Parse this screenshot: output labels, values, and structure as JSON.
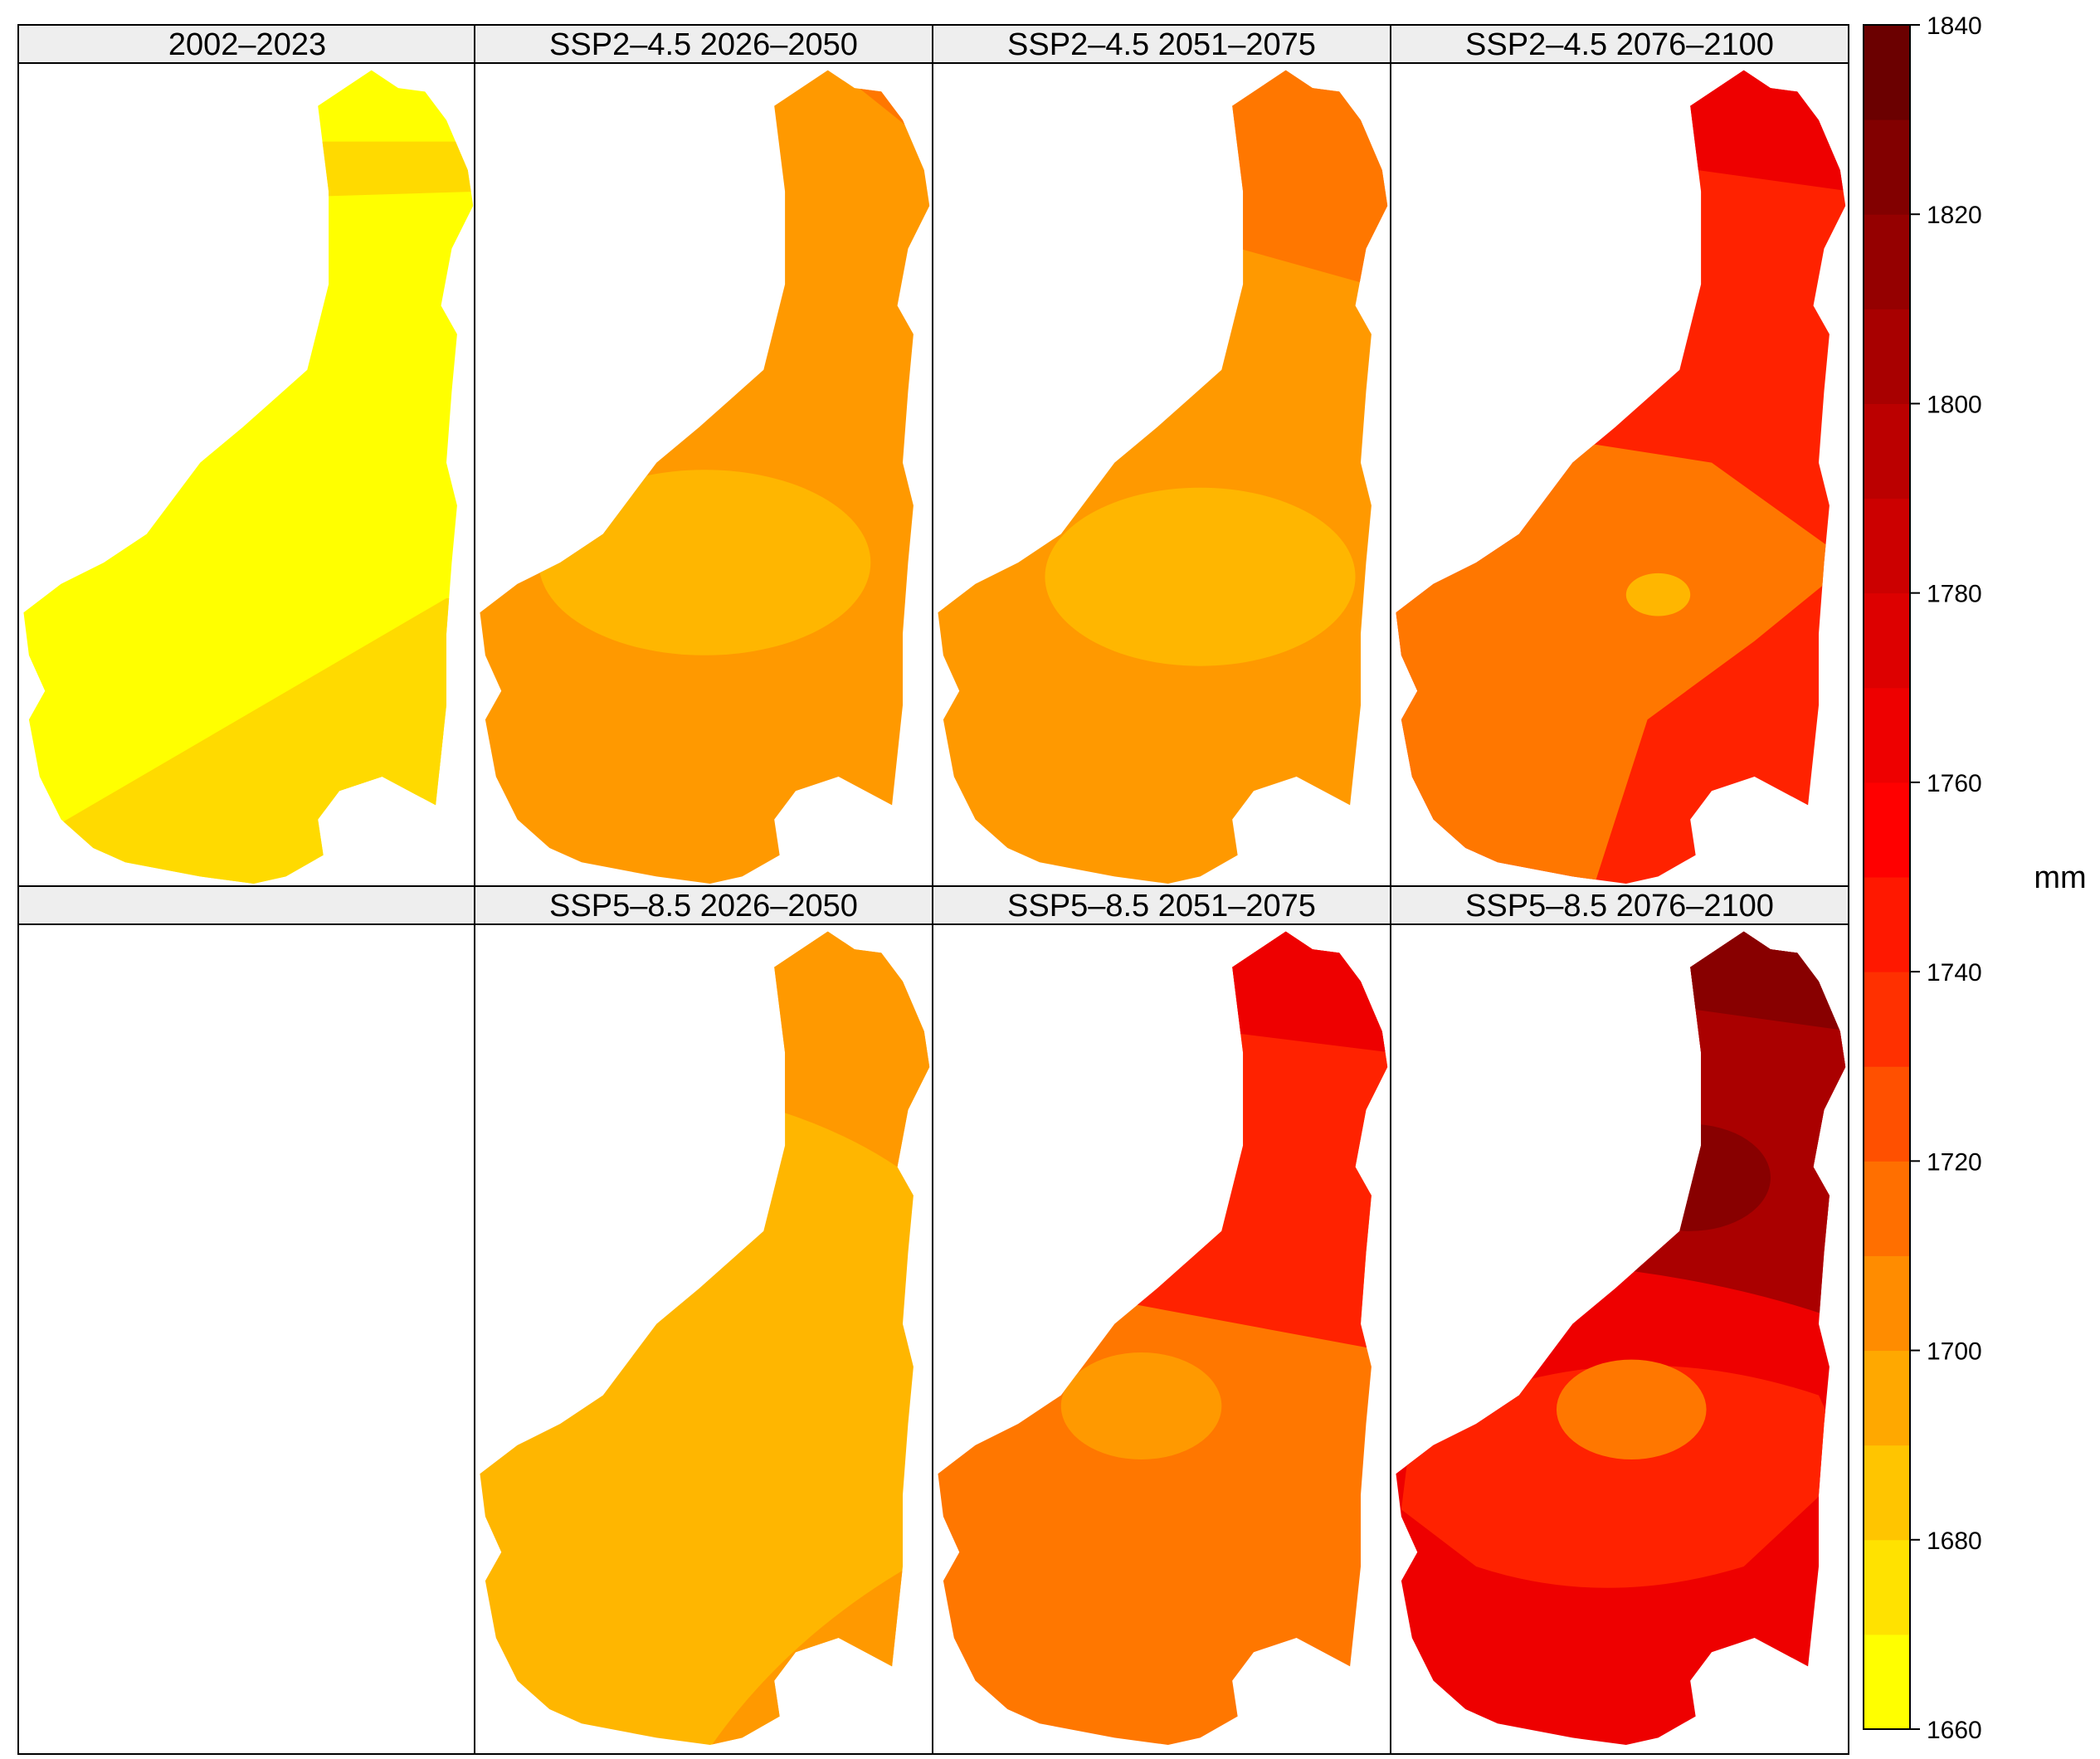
{
  "figure": {
    "unit": "mm"
  },
  "panels": [
    {
      "title": "2002–2023",
      "empty": false
    },
    {
      "title": "SSP2–4.5 2026–2050",
      "empty": false
    },
    {
      "title": "SSP2–4.5 2051–2075",
      "empty": false
    },
    {
      "title": "SSP2–4.5 2076–2100",
      "empty": false
    },
    {
      "title": "",
      "empty": true
    },
    {
      "title": "SSP5–8.5 2026–2050",
      "empty": false
    },
    {
      "title": "SSP5–8.5 2051–2075",
      "empty": false
    },
    {
      "title": "SSP5–8.5 2076–2100",
      "empty": false
    }
  ],
  "legend": {
    "ticks": [
      "1660",
      "1680",
      "1700",
      "1720",
      "1740",
      "1760",
      "1780",
      "1800",
      "1820",
      "1840"
    ],
    "breaks": [
      1660,
      1670,
      1680,
      1690,
      1700,
      1710,
      1720,
      1730,
      1740,
      1750,
      1760,
      1770,
      1780,
      1790,
      1800,
      1810,
      1820,
      1830,
      1840
    ],
    "colors": [
      "#FFFF00",
      "#FFE200",
      "#FFC500",
      "#FFA800",
      "#FF8C00",
      "#FF6F00",
      "#FF5000",
      "#FF3000",
      "#FF1800",
      "#FF0000",
      "#EE0000",
      "#DD0000",
      "#CC0000",
      "#BB0000",
      "#A80000",
      "#950000",
      "#820000",
      "#6B0000"
    ]
  },
  "chart_data": {
    "type": "heatmap",
    "description_units": "mm",
    "color_scale": {
      "min": 1660,
      "max": 1840,
      "step": 10
    },
    "panel_zones": [
      {
        "panel": "2002–2023",
        "zones_mm_ranges": [
          [
            1660,
            1670
          ],
          [
            1670,
            1680
          ]
        ]
      },
      {
        "panel": "SSP2–4.5 2026–2050",
        "zones_mm_ranges": [
          [
            1690,
            1700
          ],
          [
            1700,
            1710
          ],
          [
            1710,
            1720
          ]
        ]
      },
      {
        "panel": "SSP2–4.5 2051–2075",
        "zones_mm_ranges": [
          [
            1690,
            1700
          ],
          [
            1700,
            1710
          ],
          [
            1710,
            1720
          ]
        ]
      },
      {
        "panel": "SSP2–4.5 2076–2100",
        "zones_mm_ranges": [
          [
            1700,
            1710
          ],
          [
            1710,
            1720
          ],
          [
            1740,
            1750
          ],
          [
            1750,
            1760
          ]
        ]
      },
      {
        "panel": "SSP5–8.5 2026–2050",
        "zones_mm_ranges": [
          [
            1680,
            1690
          ],
          [
            1690,
            1700
          ]
        ]
      },
      {
        "panel": "SSP5–8.5 2051–2075",
        "zones_mm_ranges": [
          [
            1690,
            1700
          ],
          [
            1710,
            1720
          ],
          [
            1740,
            1750
          ],
          [
            1750,
            1760
          ]
        ]
      },
      {
        "panel": "SSP5–8.5 2076–2100",
        "zones_mm_ranges": [
          [
            1710,
            1720
          ],
          [
            1740,
            1750
          ],
          [
            1760,
            1770
          ],
          [
            1780,
            1790
          ],
          [
            1790,
            1800
          ],
          [
            1800,
            1810
          ]
        ]
      }
    ]
  },
  "zone_colors": {
    "baseline_main": "#FFFF00",
    "baseline_low": "#FFDA00",
    "orange_light": "#FFB600",
    "orange_mid": "#FF9900",
    "orange_dark": "#FF7700",
    "red_orange": "#FF2200",
    "red": "#EE0000",
    "red_dark": "#CC0000",
    "maroon": "#AA0000",
    "maroon_dark": "#880000"
  }
}
